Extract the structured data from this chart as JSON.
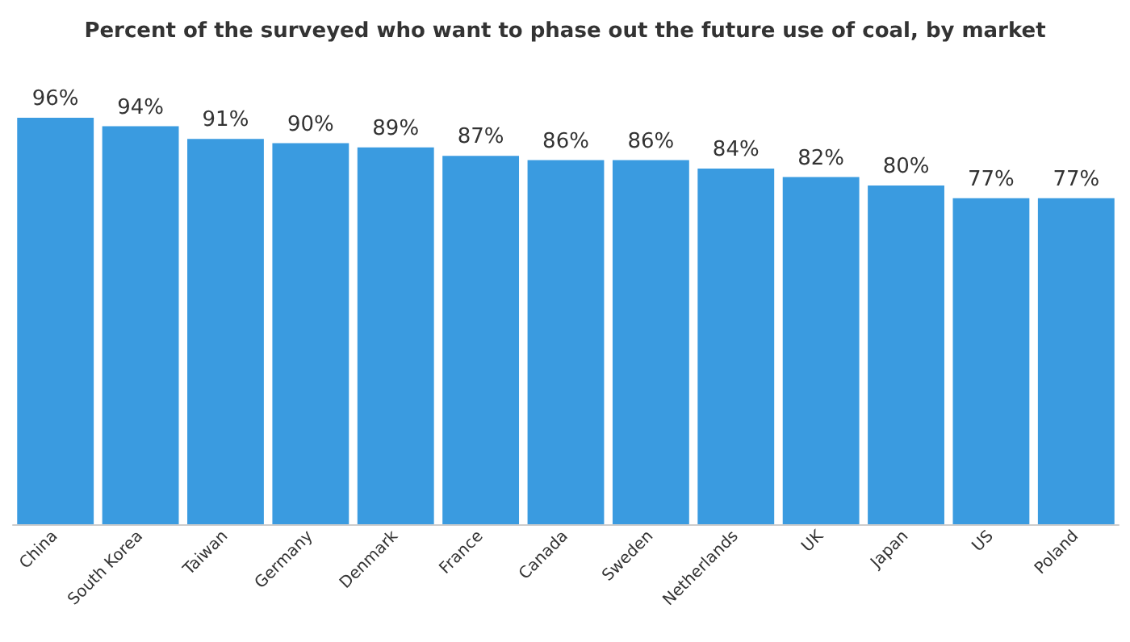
{
  "chart_data": {
    "type": "bar",
    "title": "Percent of the surveyed who want to phase out the future use of coal, by market",
    "categories": [
      "China",
      "South Korea",
      "Taiwan",
      "Germany",
      "Denmark",
      "France",
      "Canada",
      "Sweden",
      "Netherlands",
      "UK",
      "Japan",
      "US",
      "Poland"
    ],
    "values": [
      96,
      94,
      91,
      90,
      89,
      87,
      86,
      86,
      84,
      82,
      80,
      77,
      77
    ],
    "value_labels": [
      "96%",
      "94%",
      "91%",
      "90%",
      "89%",
      "87%",
      "86%",
      "86%",
      "84%",
      "82%",
      "80%",
      "77%",
      "77%"
    ],
    "color": "#3a9be0"
  }
}
